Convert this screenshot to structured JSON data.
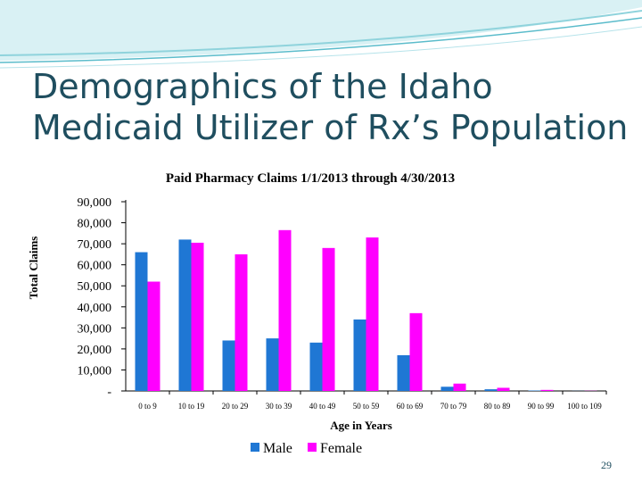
{
  "slide": {
    "title_line1": "Demographics of the Idaho",
    "title_line2": "Medicaid Utilizer of Rx’s Population",
    "slide_number": "29"
  },
  "colors": {
    "title": "#1f4e5f",
    "male": "#1f77d4",
    "female": "#ff00ff",
    "wave": "#8fd3dc"
  },
  "chart_data": {
    "type": "bar",
    "title": "Paid Pharmacy Claims 1/1/2013 through 4/30/2013",
    "xlabel": "Age in Years",
    "ylabel": "Total Claims",
    "ylim": [
      0,
      90000
    ],
    "yticks": [
      0,
      10000,
      20000,
      30000,
      40000,
      50000,
      60000,
      70000,
      80000,
      90000
    ],
    "ytick_labels": [
      "-",
      "10,000",
      "20,000",
      "30,000",
      "40,000",
      "50,000",
      "60,000",
      "70,000",
      "80,000",
      "90,000"
    ],
    "categories": [
      "0 to 9",
      "10 to 19",
      "20 to 29",
      "30 to 39",
      "40 to 49",
      "50 to 59",
      "60 to 69",
      "70 to 79",
      "80 to 89",
      "90 to 99",
      "100 to 109"
    ],
    "series": [
      {
        "name": "Male",
        "color": "#1f77d4",
        "values": [
          66000,
          72000,
          24000,
          25000,
          23000,
          34000,
          17000,
          2000,
          800,
          200,
          50
        ]
      },
      {
        "name": "Female",
        "color": "#ff00ff",
        "values": [
          52000,
          70500,
          65000,
          76500,
          68000,
          73000,
          37000,
          3500,
          1500,
          500,
          80
        ]
      }
    ],
    "legend_position": "bottom",
    "grid": false
  }
}
